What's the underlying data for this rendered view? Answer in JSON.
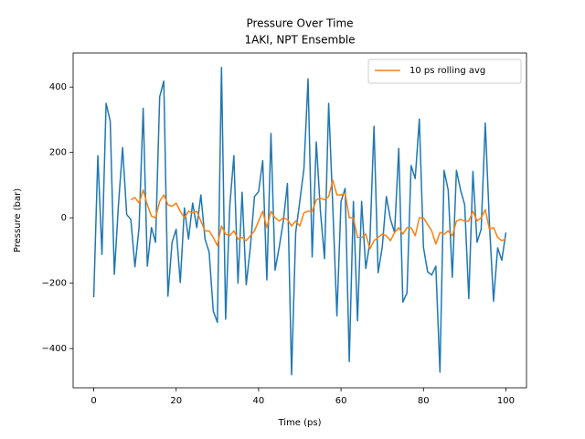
{
  "chart_data": {
    "type": "line",
    "title": "Pressure Over Time",
    "subtitle": "1AKI, NPT Ensemble",
    "xlabel": "Time (ps)",
    "ylabel": "Pressure (bar)",
    "xlim": [
      -5,
      105
    ],
    "ylim": [
      -520,
      504
    ],
    "xticks": [
      0,
      20,
      40,
      60,
      80,
      100
    ],
    "yticks": [
      {
        "value": -400,
        "label": "−400"
      },
      {
        "value": -200,
        "label": "−200"
      },
      0,
      200,
      400
    ],
    "legend": "upper right",
    "series": [
      {
        "color": "#1f77b4",
        "x": [
          0,
          1,
          2,
          3,
          4,
          5,
          6,
          7,
          8,
          9,
          10,
          11,
          12,
          13,
          14,
          15,
          16,
          17,
          18,
          19,
          20,
          21,
          22,
          23,
          24,
          25,
          26,
          27,
          28,
          29,
          30,
          31,
          32,
          33,
          34,
          35,
          36,
          37,
          38,
          39,
          40,
          41,
          42,
          43,
          44,
          45,
          46,
          47,
          48,
          49,
          50,
          51,
          52,
          53,
          54,
          55,
          56,
          57,
          58,
          59,
          60,
          61,
          62,
          63,
          64,
          65,
          66,
          67,
          68,
          69,
          70,
          71,
          72,
          73,
          74,
          75,
          76,
          77,
          78,
          79,
          80,
          81,
          82,
          83,
          84,
          85,
          86,
          87,
          88,
          89,
          90,
          91,
          92,
          93,
          94,
          95,
          96,
          97,
          98,
          99,
          100
        ],
        "values": [
          -243,
          190,
          -112,
          350,
          296,
          -173,
          40,
          215,
          10,
          -5,
          -150,
          -30,
          335,
          -148,
          -30,
          -75,
          370,
          418,
          -240,
          -75,
          -35,
          -198,
          30,
          -65,
          45,
          -30,
          70,
          -65,
          -105,
          -285,
          -320,
          460,
          -310,
          35,
          190,
          -200,
          78,
          -205,
          -90,
          65,
          80,
          175,
          -190,
          258,
          -160,
          -90,
          -10,
          105,
          -480,
          -45,
          50,
          150,
          425,
          -120,
          232,
          20,
          -125,
          350,
          35,
          -300,
          50,
          90,
          -440,
          50,
          -315,
          50,
          -155,
          -75,
          280,
          -168,
          -90,
          65,
          -5,
          -45,
          212,
          -258,
          -230,
          160,
          120,
          302,
          -90,
          -165,
          -175,
          -148,
          -472,
          145,
          85,
          -182,
          145,
          85,
          40,
          -247,
          142,
          -75,
          -35,
          290,
          -15,
          -255,
          -92,
          -130,
          -45
        ]
      },
      {
        "name": "10 ps rolling avg",
        "color": "#ff7f0e",
        "x": [
          9,
          10,
          11,
          12,
          13,
          14,
          15,
          16,
          17,
          18,
          19,
          20,
          21,
          22,
          23,
          24,
          25,
          26,
          27,
          28,
          29,
          30,
          31,
          32,
          33,
          34,
          35,
          36,
          37,
          38,
          39,
          40,
          41,
          42,
          43,
          44,
          45,
          46,
          47,
          48,
          49,
          50,
          51,
          52,
          53,
          54,
          55,
          56,
          57,
          58,
          59,
          60,
          61,
          62,
          63,
          64,
          65,
          66,
          67,
          68,
          69,
          70,
          71,
          72,
          73,
          74,
          75,
          76,
          77,
          78,
          79,
          80,
          81,
          82,
          83,
          84,
          85,
          86,
          87,
          88,
          89,
          90,
          91,
          92,
          93,
          94,
          95,
          96,
          97,
          98,
          99,
          100
        ],
        "values": [
          55,
          62,
          45,
          85,
          40,
          5,
          0,
          50,
          70,
          40,
          35,
          45,
          20,
          0,
          20,
          15,
          20,
          -10,
          -40,
          -40,
          -60,
          -85,
          -25,
          -50,
          -55,
          -40,
          -65,
          -60,
          -70,
          -55,
          -40,
          -10,
          20,
          -30,
          20,
          0,
          -10,
          0,
          -5,
          -25,
          -10,
          -25,
          15,
          20,
          20,
          55,
          60,
          55,
          65,
          115,
          70,
          70,
          75,
          0,
          0,
          -60,
          -60,
          -50,
          -95,
          -70,
          -60,
          -50,
          -55,
          -70,
          -45,
          -30,
          -50,
          -30,
          -30,
          -55,
          0,
          0,
          -20,
          -40,
          -80,
          -45,
          -50,
          -40,
          -55,
          -10,
          -5,
          -10,
          -10,
          20,
          -10,
          0,
          25,
          -35,
          -30,
          -60,
          -70,
          -65
        ]
      }
    ]
  }
}
